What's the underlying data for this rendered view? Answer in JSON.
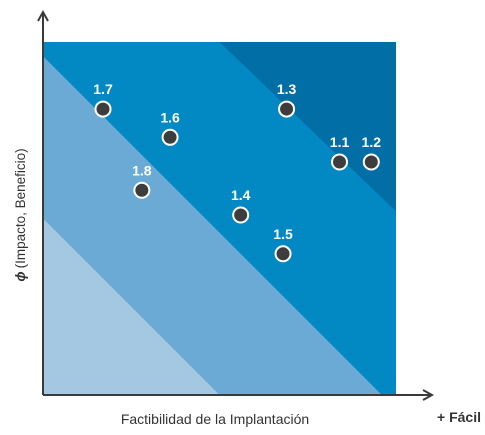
{
  "chart_data": {
    "type": "scatter",
    "xlabel": "Factibilidad de la Implantación",
    "ylabel_symbol": "ϕ",
    "ylabel": "(Impacto, Beneficio)",
    "x_end_label": "+ Fácil",
    "grid": false,
    "points": [
      {
        "label": "1.1",
        "x": 0.84,
        "y": 0.66
      },
      {
        "label": "1.2",
        "x": 0.93,
        "y": 0.66
      },
      {
        "label": "1.3",
        "x": 0.69,
        "y": 0.81
      },
      {
        "label": "1.4",
        "x": 0.56,
        "y": 0.51
      },
      {
        "label": "1.5",
        "x": 0.68,
        "y": 0.4
      },
      {
        "label": "1.6",
        "x": 0.36,
        "y": 0.73
      },
      {
        "label": "1.7",
        "x": 0.17,
        "y": 0.81
      },
      {
        "label": "1.8",
        "x": 0.28,
        "y": 0.58
      }
    ],
    "colors": {
      "zone_1": "#a5c8e2",
      "zone_2": "#6aaad4",
      "zone_3": "#0288c2",
      "zone_4": "#026ea6",
      "marker_fill": "#3d3d3d",
      "marker_stroke": "#ffffff",
      "axis": "#3a3a3a"
    }
  }
}
